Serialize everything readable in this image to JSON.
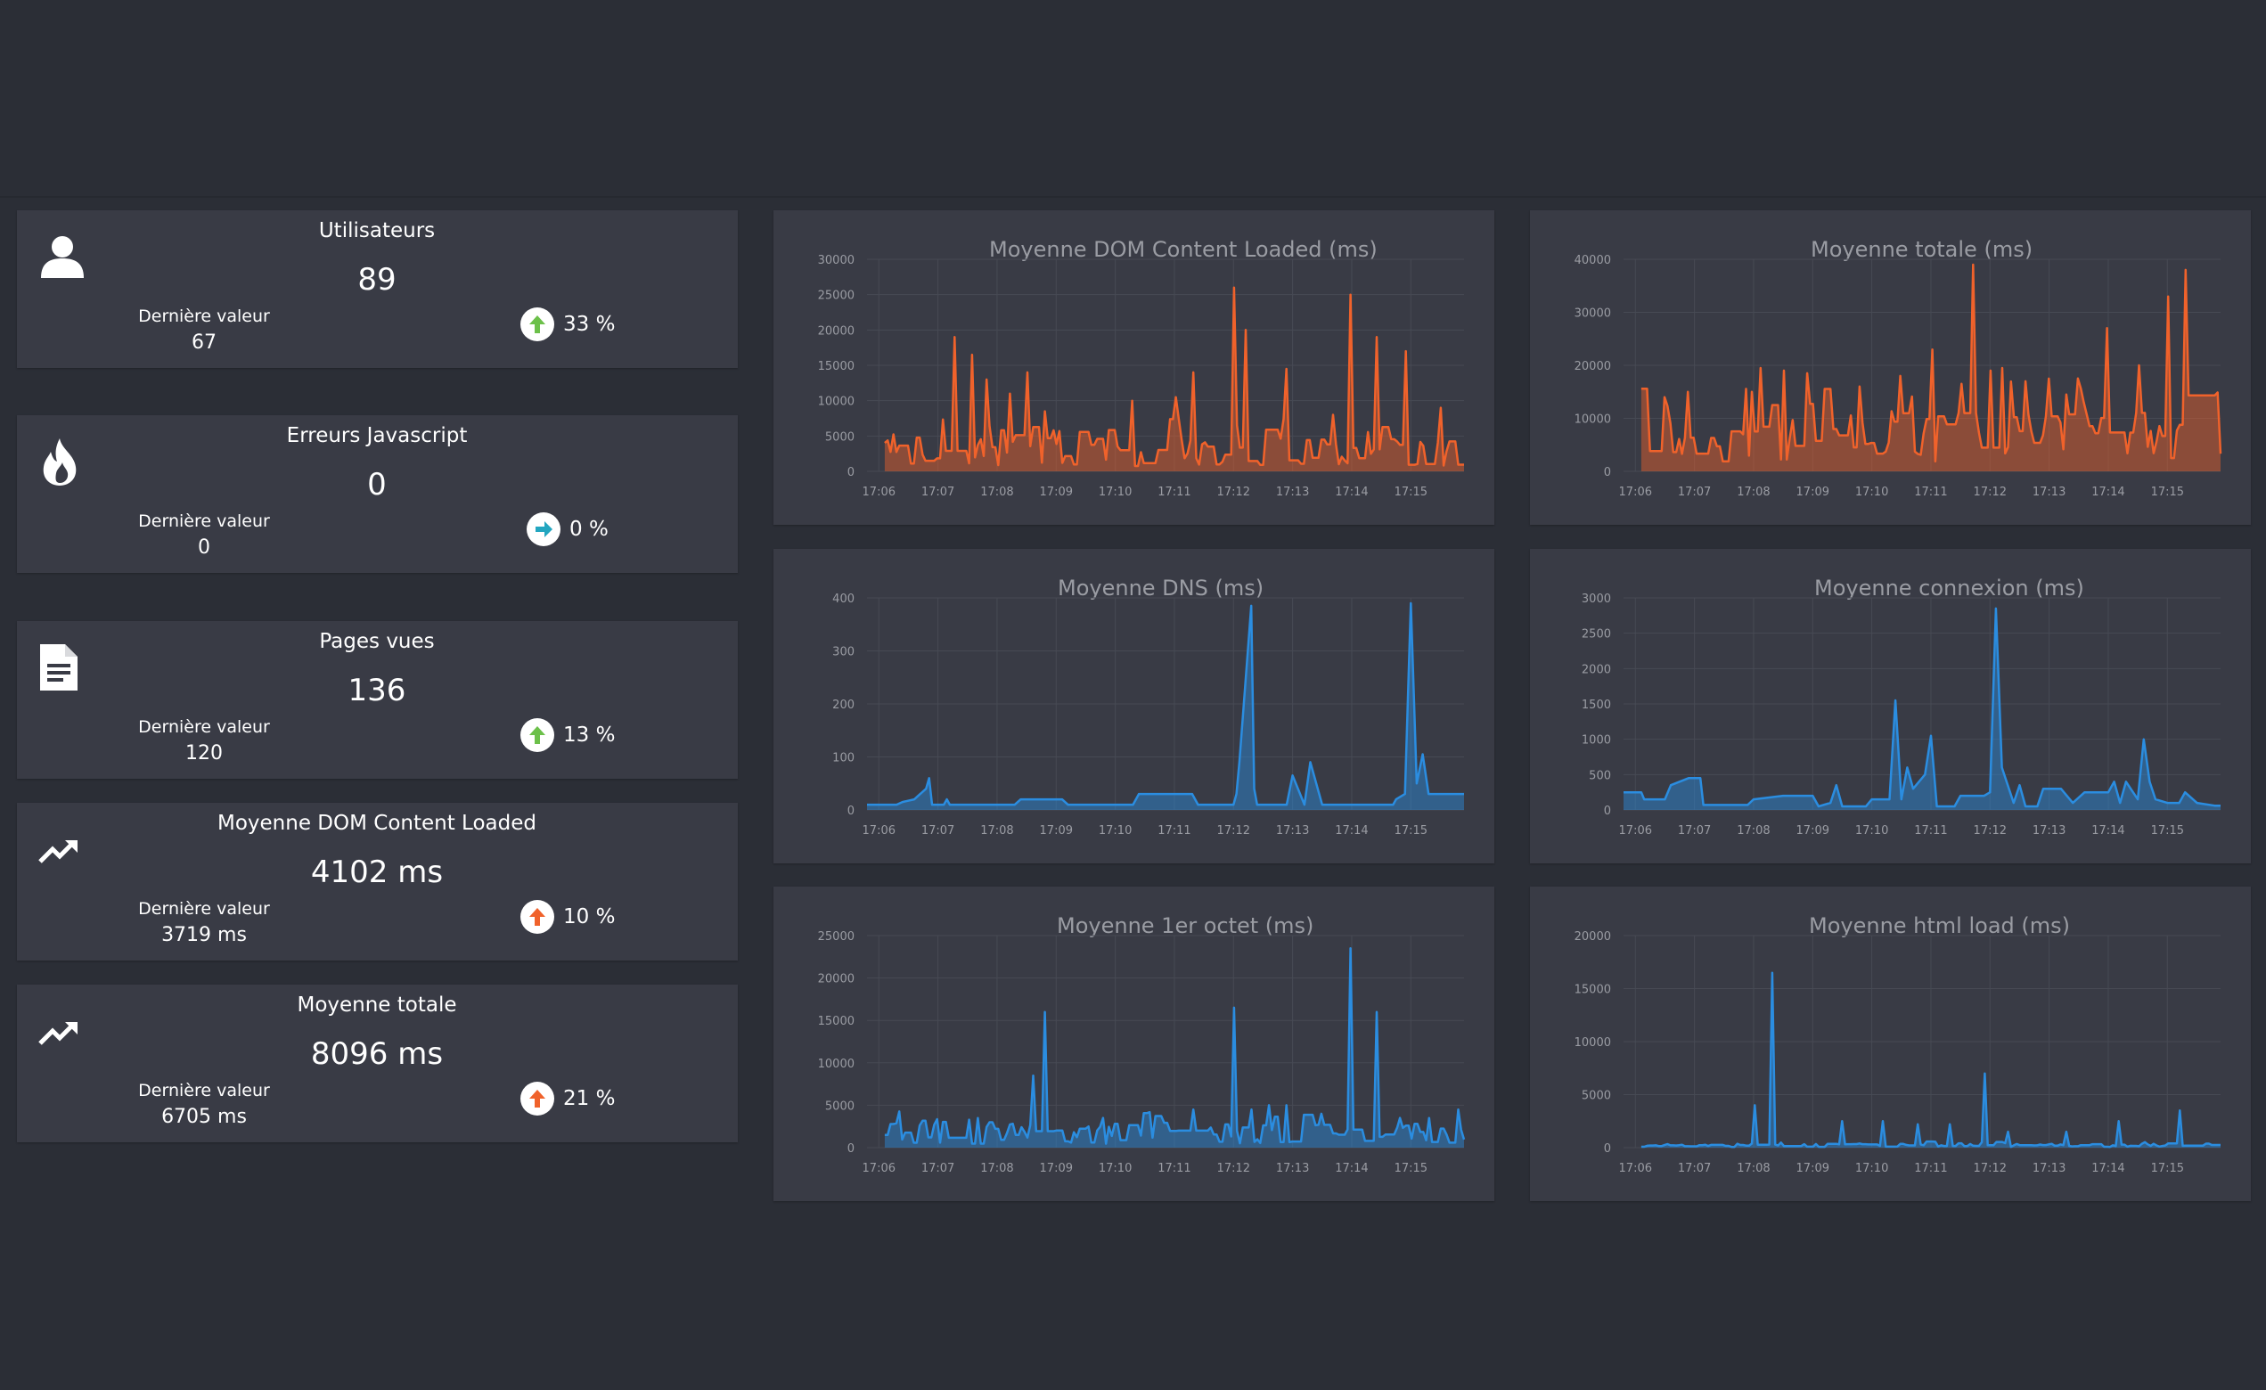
{
  "colors": {
    "background": "#2b2e36",
    "panel": "#393b45",
    "orange": "#f0622b",
    "blue": "#2b8de0",
    "up_green": "#6cc04a",
    "neutral_teal": "#23a6c0",
    "up_orange": "#f0622b",
    "grid": "#474a54",
    "tick": "#9a9ca3"
  },
  "stats": [
    {
      "title": "Utilisateurs",
      "value": "89",
      "last_label": "Dernière valeur",
      "last_value": "67",
      "trend": "33 %",
      "trend_dir": "up",
      "trend_color": "#6cc04a",
      "icon": "user-icon"
    },
    {
      "title": "Erreurs Javascript",
      "value": "0",
      "last_label": "Dernière valeur",
      "last_value": "0",
      "trend": "0 %",
      "trend_dir": "right",
      "trend_color": "#23a6c0",
      "icon": "flame-icon"
    },
    {
      "title": "Pages vues",
      "value": "136",
      "last_label": "Dernière valeur",
      "last_value": "120",
      "trend": "13 %",
      "trend_dir": "up",
      "trend_color": "#6cc04a",
      "icon": "document-icon"
    },
    {
      "title": "Moyenne DOM Content Loaded",
      "value": "4102 ms",
      "last_label": "Dernière valeur",
      "last_value": "3719 ms",
      "trend": "10 %",
      "trend_dir": "up",
      "trend_color": "#f0622b",
      "icon": "trending-up-icon"
    },
    {
      "title": "Moyenne totale",
      "value": "8096 ms",
      "last_label": "Dernière valeur",
      "last_value": "6705 ms",
      "trend": "21 %",
      "trend_dir": "up",
      "trend_color": "#f0622b",
      "icon": "trending-up-icon"
    }
  ],
  "chart_data": [
    {
      "type": "area",
      "title": "Moyenne DOM Content Loaded (ms)",
      "color": "#f0622b",
      "x_ticks": [
        "17:06",
        "17:07",
        "17:08",
        "17:09",
        "17:10",
        "17:11",
        "17:12",
        "17:13",
        "17:14",
        "17:15"
      ],
      "y_ticks": [
        "0",
        "5000",
        "10000",
        "15000",
        "20000",
        "25000",
        "30000"
      ],
      "ylim": [
        0,
        30000
      ],
      "x_range_minutes": [
        -0.2,
        9.9
      ],
      "peaks": [
        [
          1.3,
          19000
        ],
        [
          1.6,
          16500
        ],
        [
          1.8,
          13000
        ],
        [
          2.2,
          11000
        ],
        [
          2.5,
          14000
        ],
        [
          2.8,
          8500
        ],
        [
          4.3,
          10000
        ],
        [
          5.0,
          10500
        ],
        [
          5.3,
          14000
        ],
        [
          6.0,
          26000
        ],
        [
          6.2,
          20000
        ],
        [
          6.9,
          14500
        ],
        [
          7.7,
          8000
        ],
        [
          8.0,
          25000
        ],
        [
          8.4,
          19000
        ],
        [
          8.9,
          17000
        ],
        [
          9.5,
          9000
        ]
      ],
      "baseline": 2500
    },
    {
      "type": "area",
      "title": "Moyenne totale (ms)",
      "color": "#f0622b",
      "x_ticks": [
        "17:06",
        "17:07",
        "17:08",
        "17:09",
        "17:10",
        "17:11",
        "17:12",
        "17:13",
        "17:14",
        "17:15"
      ],
      "y_ticks": [
        "0",
        "10000",
        "20000",
        "30000",
        "40000"
      ],
      "ylim": [
        0,
        40000
      ],
      "x_range_minutes": [
        -0.2,
        9.9
      ],
      "peaks": [
        [
          0.5,
          14000
        ],
        [
          0.9,
          15000
        ],
        [
          2.1,
          19500
        ],
        [
          2.5,
          19000
        ],
        [
          2.9,
          18500
        ],
        [
          3.8,
          16000
        ],
        [
          4.5,
          18000
        ],
        [
          5.0,
          23000
        ],
        [
          5.5,
          16500
        ],
        [
          5.7,
          39000
        ],
        [
          6.0,
          19000
        ],
        [
          6.2,
          19500
        ],
        [
          6.6,
          17000
        ],
        [
          7.0,
          17500
        ],
        [
          7.3,
          14500
        ],
        [
          7.6,
          13000
        ],
        [
          8.0,
          27000
        ],
        [
          8.5,
          20000
        ],
        [
          9.0,
          33000
        ],
        [
          9.3,
          38000
        ]
      ],
      "baseline": 6000
    },
    {
      "type": "area",
      "title": "Moyenne DNS (ms)",
      "color": "#2b8de0",
      "x_ticks": [
        "17:06",
        "17:07",
        "17:08",
        "17:09",
        "17:10",
        "17:11",
        "17:12",
        "17:13",
        "17:14",
        "17:15"
      ],
      "y_ticks": [
        "0",
        "100",
        "200",
        "300",
        "400"
      ],
      "ylim": [
        0,
        400
      ],
      "x_range_minutes": [
        -0.2,
        9.9
      ]
    },
    {
      "type": "area",
      "title": "Moyenne connexion (ms)",
      "color": "#2b8de0",
      "x_ticks": [
        "17:06",
        "17:07",
        "17:08",
        "17:09",
        "17:10",
        "17:11",
        "17:12",
        "17:13",
        "17:14",
        "17:15"
      ],
      "y_ticks": [
        "0",
        "500",
        "1000",
        "1500",
        "2000",
        "2500",
        "3000"
      ],
      "ylim": [
        0,
        3000
      ],
      "x_range_minutes": [
        -0.2,
        9.9
      ]
    },
    {
      "type": "area",
      "title": "Moyenne 1er octet (ms)",
      "color": "#2b8de0",
      "x_ticks": [
        "17:06",
        "17:07",
        "17:08",
        "17:09",
        "17:10",
        "17:11",
        "17:12",
        "17:13",
        "17:14",
        "17:15"
      ],
      "y_ticks": [
        "0",
        "5000",
        "10000",
        "15000",
        "20000",
        "25000"
      ],
      "ylim": [
        0,
        25000
      ],
      "x_range_minutes": [
        -0.2,
        9.9
      ],
      "peaks": [
        [
          1.7,
          3500
        ],
        [
          2.6,
          8500
        ],
        [
          2.8,
          16000
        ],
        [
          3.8,
          3500
        ],
        [
          5.3,
          4500
        ],
        [
          6.0,
          16500
        ],
        [
          6.3,
          4500
        ],
        [
          6.6,
          5000
        ],
        [
          6.9,
          5000
        ],
        [
          7.5,
          4000
        ],
        [
          8.0,
          23500
        ],
        [
          8.4,
          16000
        ],
        [
          8.8,
          3500
        ],
        [
          9.3,
          3500
        ],
        [
          9.8,
          4500
        ]
      ],
      "baseline": 1500
    },
    {
      "type": "area",
      "title": "Moyenne html load (ms)",
      "color": "#2b8de0",
      "x_ticks": [
        "17:06",
        "17:07",
        "17:08",
        "17:09",
        "17:10",
        "17:11",
        "17:12",
        "17:13",
        "17:14",
        "17:15"
      ],
      "y_ticks": [
        "0",
        "5000",
        "10000",
        "15000",
        "20000"
      ],
      "ylim": [
        0,
        20000
      ],
      "x_range_minutes": [
        -0.2,
        9.9
      ],
      "peaks": [
        [
          2.0,
          4000
        ],
        [
          2.3,
          16500
        ],
        [
          3.5,
          2500
        ],
        [
          4.2,
          2500
        ],
        [
          4.8,
          2200
        ],
        [
          5.3,
          2200
        ],
        [
          5.9,
          7000
        ],
        [
          6.3,
          1500
        ],
        [
          7.3,
          1500
        ],
        [
          8.2,
          2500
        ],
        [
          9.2,
          3500
        ]
      ],
      "baseline": 200
    }
  ]
}
